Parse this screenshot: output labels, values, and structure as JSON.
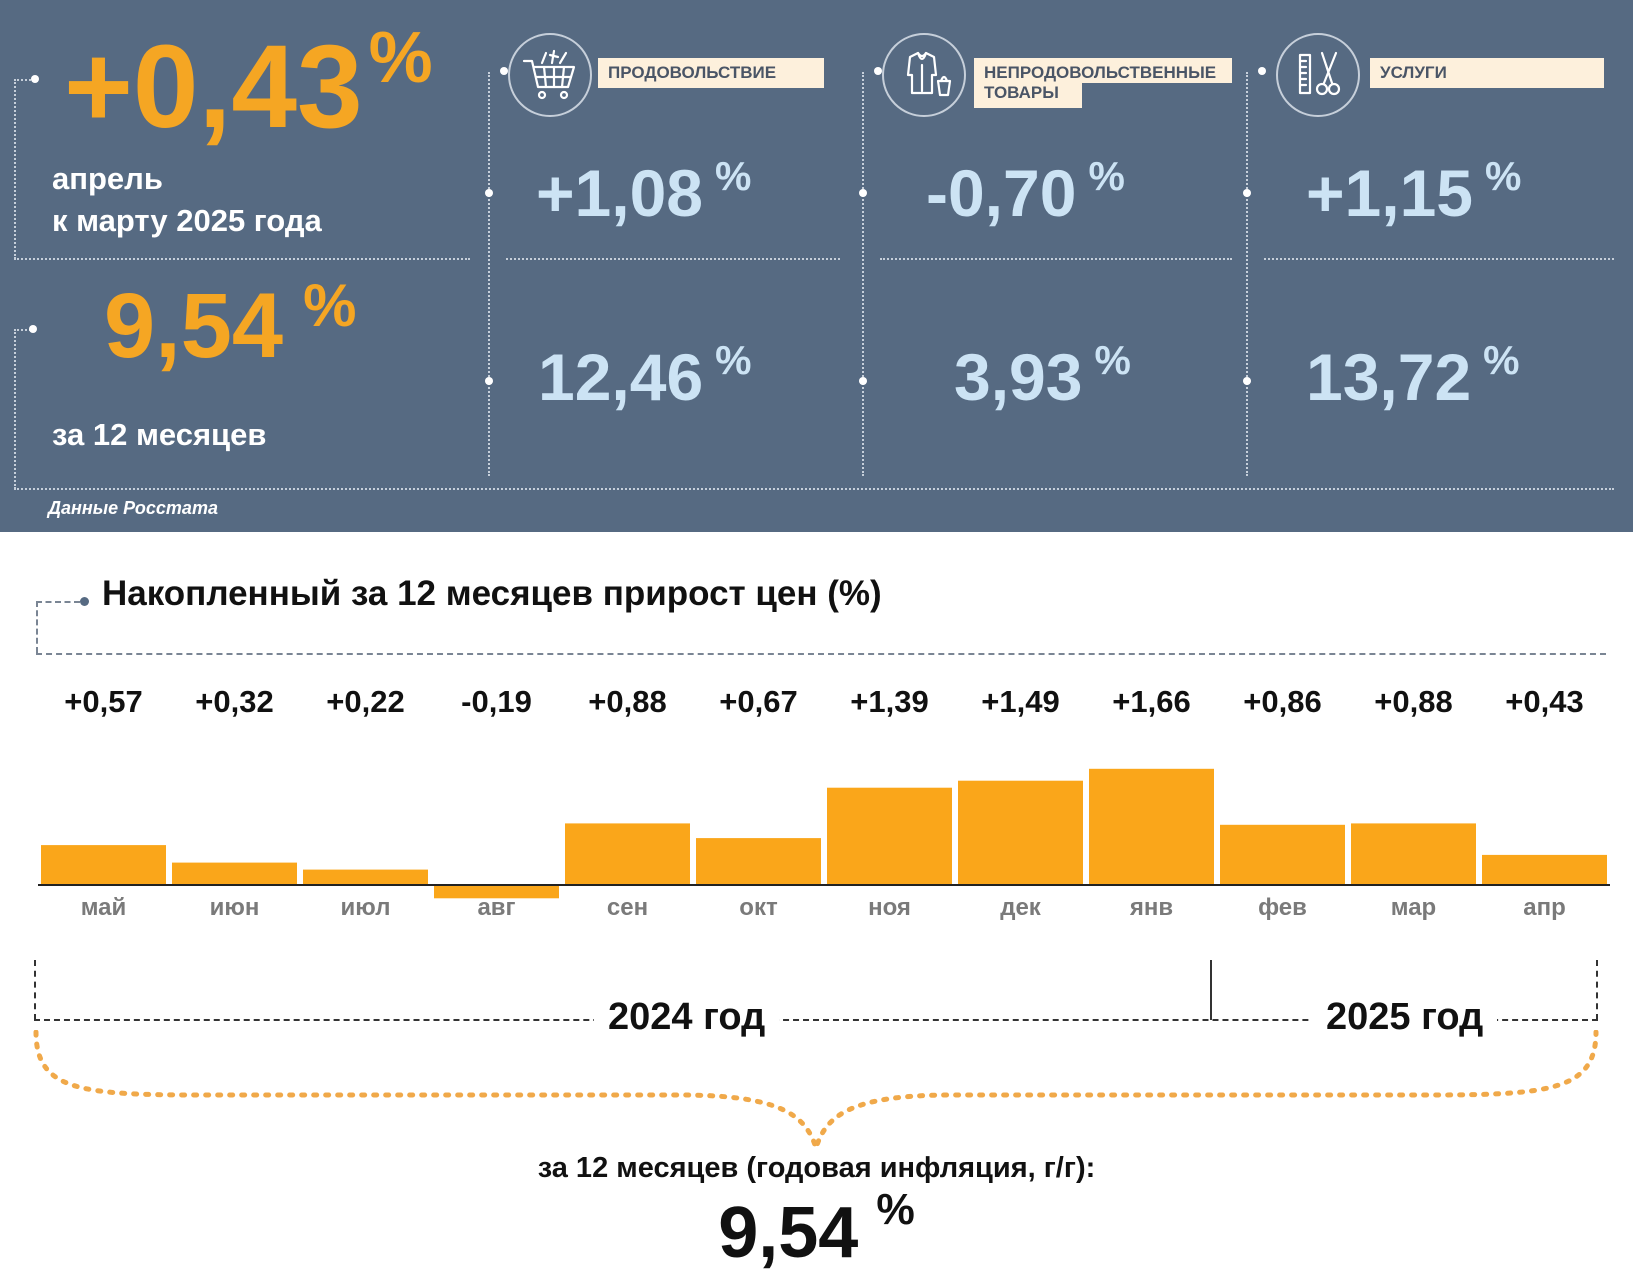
{
  "summary": {
    "monthly_value": "+0,43",
    "monthly_pct": "%",
    "monthly_line1": "апрель",
    "monthly_line2": "к марту 2025 года",
    "annual_value": "9,54",
    "annual_pct": "%",
    "annual_caption": "за 12 месяцев",
    "source": "Данные Росстата"
  },
  "categories": [
    {
      "label": "ПРОДОВОЛЬСТВИЕ",
      "icon": "shopping-cart-icon",
      "monthly": "+1,08",
      "annual": "12,46",
      "pct": "%"
    },
    {
      "label_line1": "НЕПРОДОВОЛЬСТВЕННЫЕ",
      "label_line2": "ТОВАРЫ",
      "icon": "clothing-icon",
      "monthly": "-0,70",
      "annual": "3,93",
      "pct": "%"
    },
    {
      "label": "УСЛУГИ",
      "icon": "scissors-comb-icon",
      "monthly": "+1,15",
      "annual": "13,72",
      "pct": "%"
    }
  ],
  "chart_title": "Накопленный за 12 месяцев прирост цен (%)",
  "chart_data": {
    "type": "bar",
    "title": "Накопленный за 12 месяцев прирост цен (%)",
    "categories": [
      "май",
      "июн",
      "июл",
      "авг",
      "сен",
      "окт",
      "ноя",
      "дек",
      "янв",
      "фев",
      "мар",
      "апр"
    ],
    "values": [
      0.57,
      0.32,
      0.22,
      -0.19,
      0.88,
      0.67,
      1.39,
      1.49,
      1.66,
      0.86,
      0.88,
      0.43
    ],
    "value_labels": [
      "+0,57",
      "+0,32",
      "+0,22",
      "-0,19",
      "+0,88",
      "+0,67",
      "+1,39",
      "+1,49",
      "+1,66",
      "+0,86",
      "+0,88",
      "+0,43"
    ],
    "bar_color": "#faa61a",
    "years": [
      {
        "label": "2024 год",
        "months": 8
      },
      {
        "label": "2025 год",
        "months": 4
      }
    ]
  },
  "footer": {
    "caption": "за 12 месяцев (годовая инфляция, г/г):",
    "value": "9,54",
    "pct": "%"
  },
  "colors": {
    "panel_bg": "#566a82",
    "accent_orange": "#f5a623",
    "value_blue": "#cce3f4",
    "label_bg": "#fdf0dc"
  }
}
